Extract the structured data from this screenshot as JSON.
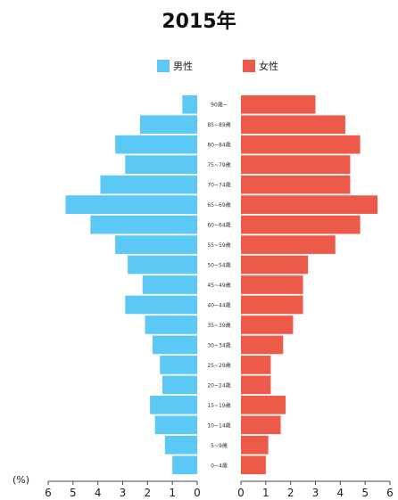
{
  "chart_data": {
    "type": "bar",
    "title": "2015年",
    "unit_label": "(%)",
    "legend_position": "top",
    "categories": [
      "0~4歳",
      "5~9歳",
      "10~14歳",
      "15~19歳",
      "20~24歳",
      "25~29歳",
      "30~34歳",
      "35~39歳",
      "40~44歳",
      "45~49歳",
      "50~54歳",
      "55~59歳",
      "60~64歳",
      "65~69歳",
      "70~74歳",
      "75~79歳",
      "80~84歳",
      "85~89歳",
      "90歳~"
    ],
    "series": [
      {
        "name": "男性",
        "color": "#5bc8f5",
        "values": [
          1.0,
          1.3,
          1.7,
          1.9,
          1.4,
          1.5,
          1.8,
          2.1,
          2.9,
          2.2,
          2.8,
          3.3,
          4.3,
          5.3,
          3.9,
          2.9,
          3.3,
          2.3,
          0.6
        ]
      },
      {
        "name": "女性",
        "color": "#ee5a4a",
        "values": [
          1.0,
          1.1,
          1.6,
          1.8,
          1.2,
          1.2,
          1.7,
          2.1,
          2.5,
          2.5,
          2.7,
          3.8,
          4.8,
          5.5,
          4.4,
          4.4,
          4.8,
          4.2,
          3.0
        ]
      }
    ],
    "xlim": [
      0,
      6
    ],
    "x_ticks": [
      "0",
      "1",
      "2",
      "3",
      "4",
      "5",
      "6"
    ],
    "left_x_ticks": [
      "6",
      "5",
      "4",
      "3",
      "2",
      "1",
      "0"
    ]
  }
}
